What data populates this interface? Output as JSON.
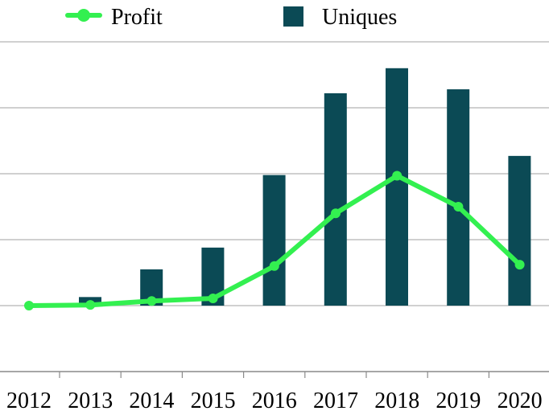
{
  "chart_data": {
    "type": "bar",
    "categories": [
      "2012",
      "2013",
      "2014",
      "2015",
      "2016",
      "2017",
      "2018",
      "2019",
      "2020"
    ],
    "series": [
      {
        "name": "Uniques",
        "type": "bar",
        "color": "#0b4a55",
        "values": [
          0.0,
          0.13,
          0.55,
          0.88,
          1.98,
          3.22,
          3.6,
          3.28,
          2.27
        ]
      },
      {
        "name": "Profit",
        "type": "line",
        "color": "#33f050",
        "values": [
          0.0,
          0.01,
          0.07,
          0.11,
          0.6,
          1.4,
          1.97,
          1.5,
          0.62
        ]
      }
    ],
    "ylim": [
      -1,
      4.5
    ],
    "y_gridlines": [
      -1,
      0,
      1,
      2,
      3,
      4
    ],
    "legend_position": "top",
    "grid": true,
    "title": "",
    "xlabel": "",
    "ylabel": ""
  }
}
